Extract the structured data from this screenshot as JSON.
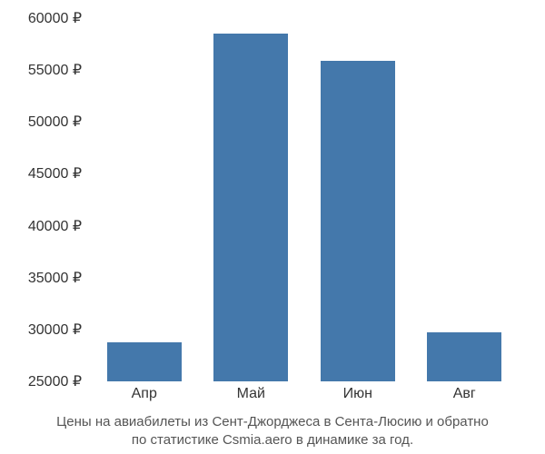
{
  "chart": {
    "type": "bar",
    "categories": [
      "Апр",
      "Май",
      "Июн",
      "Авг"
    ],
    "values": [
      28800,
      58500,
      55900,
      29700
    ],
    "bar_color": "#4478ab",
    "background_color": "#ffffff",
    "y_min": 25000,
    "y_max": 60000,
    "y_step": 5000,
    "y_suffix": " ₽",
    "y_ticks": [
      25000,
      30000,
      35000,
      40000,
      45000,
      50000,
      55000,
      60000
    ],
    "y_tick_labels": [
      "25000 ₽",
      "30000 ₽",
      "35000 ₽",
      "40000 ₽",
      "45000 ₽",
      "50000 ₽",
      "55000 ₽",
      "60000 ₽"
    ],
    "tick_color": "#333333",
    "tick_fontsize": 16,
    "bar_width_ratio": 0.7,
    "caption_color": "#555555",
    "caption_fontsize": 15
  },
  "caption": {
    "line1": "Цены на авиабилеты из Сент-Джорджеса в Сента-Люсию и обратно",
    "line2": "по статистике Csmia.aero в динамике за год."
  }
}
